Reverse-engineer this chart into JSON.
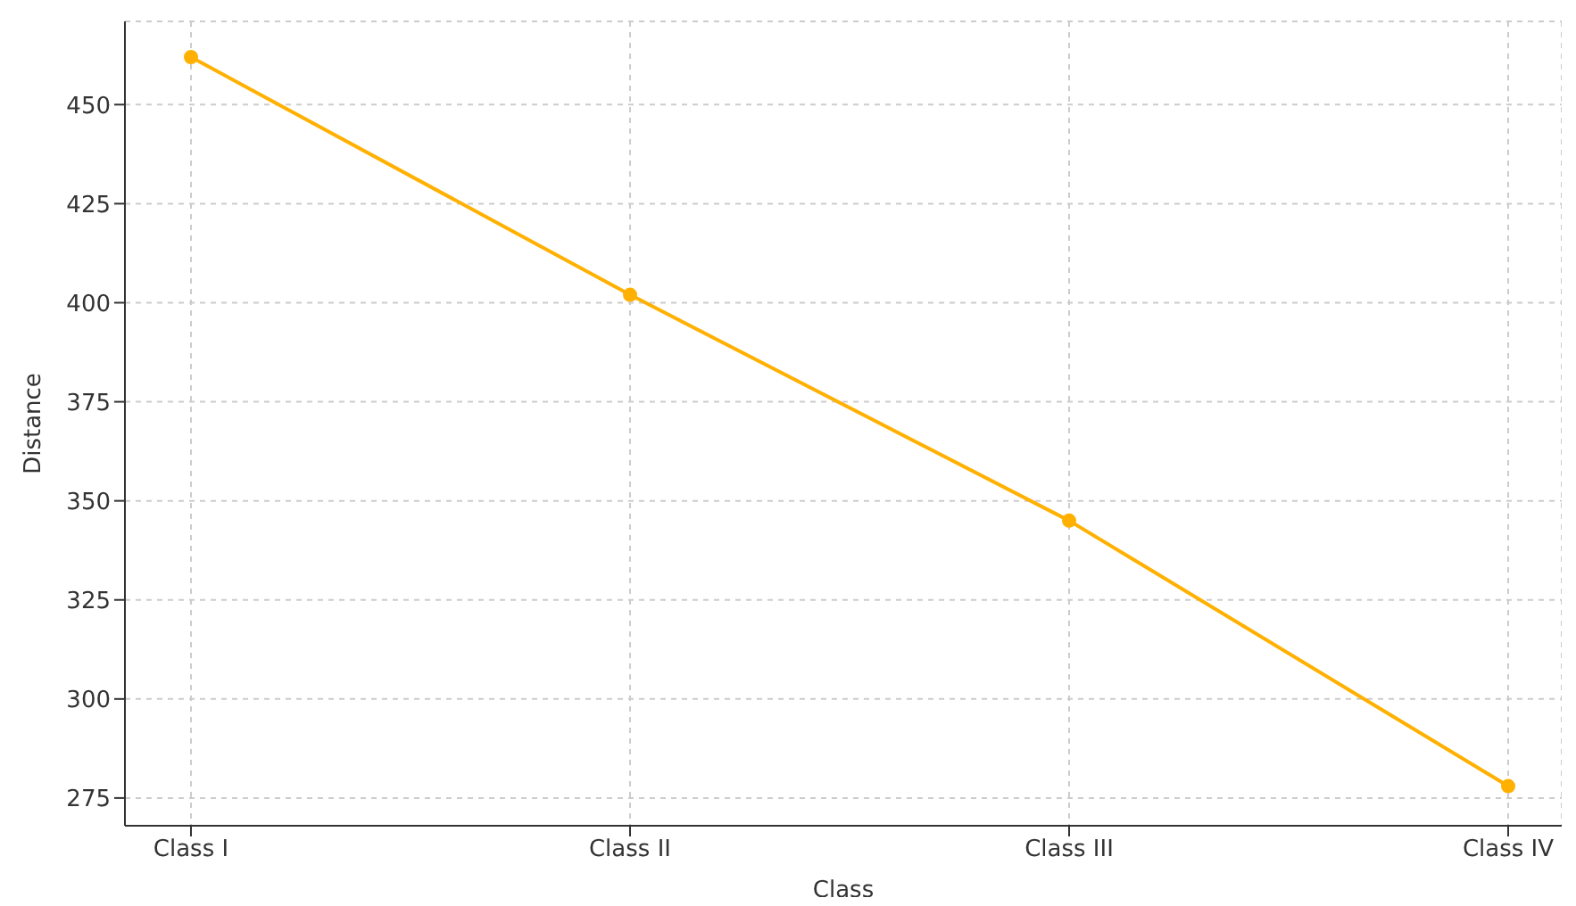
{
  "chart_data": {
    "type": "line",
    "xlabel": "Class",
    "ylabel": "Distance",
    "categories": [
      "Class I",
      "Class II",
      "Class III",
      "Class IV"
    ],
    "series": [
      {
        "color": "#ffb000",
        "values": [
          462,
          402,
          345,
          278
        ]
      }
    ],
    "ylim": [
      268,
      471
    ],
    "yticks": [
      275,
      300,
      325,
      350,
      375,
      400,
      425,
      450
    ],
    "grid": true,
    "marker": "circle",
    "line_style": "solid"
  }
}
